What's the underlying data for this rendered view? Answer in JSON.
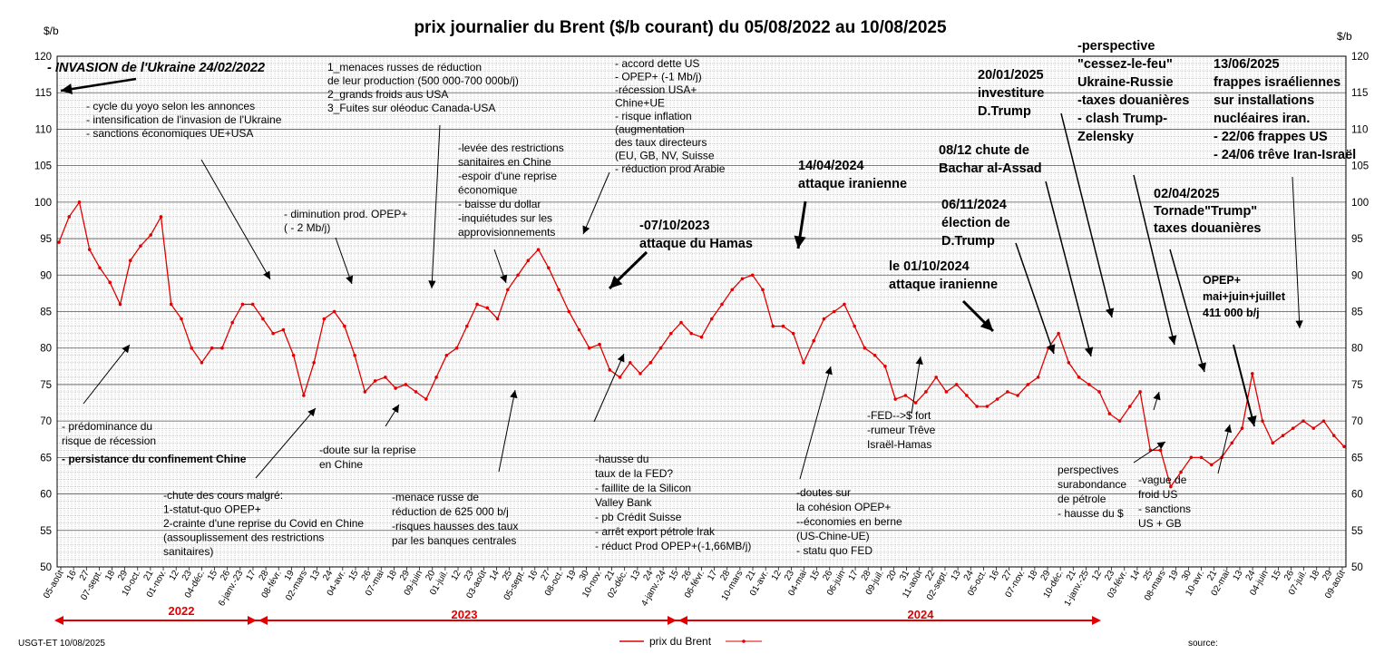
{
  "chart_data": {
    "type": "line",
    "title": "prix  journalier du  Brent ($/b courant) du 05/08/2022  au  10/08/2025",
    "ylabel_left": "$/b",
    "ylabel_right": "$/b",
    "ylim": [
      50,
      120
    ],
    "yticks": [
      50,
      55,
      60,
      65,
      70,
      75,
      80,
      85,
      90,
      95,
      100,
      105,
      110,
      115,
      120
    ],
    "grid": "on",
    "legend_position": "bottom-center",
    "color": "#e00000",
    "x_tick_labels": [
      "05-août",
      "16",
      "27",
      "07-sept.",
      "18",
      "29",
      "10-oct.",
      "21",
      "01-nov.",
      "12",
      "23",
      "04-déc.",
      "15",
      "26",
      "6-janv.-23",
      "17",
      "28",
      "08-févr.",
      "19",
      "02-mars",
      "13",
      "24",
      "04-avr.",
      "15",
      "26",
      "07-mai",
      "18",
      "29",
      "09-juin",
      "20",
      "01-juil.",
      "12",
      "23",
      "03-août",
      "14",
      "25",
      "05-sept.",
      "16",
      "27",
      "08-oct.",
      "19",
      "30",
      "10-nov.",
      "21",
      "02-déc.",
      "13",
      "24",
      "4-janv.-24",
      "15",
      "26",
      "06-févr.",
      "17",
      "28",
      "10-mars",
      "21",
      "01-avr.",
      "12",
      "23",
      "04-mai",
      "15",
      "26",
      "06-juin",
      "17",
      "28",
      "09-juil.",
      "20",
      "31",
      "11-août",
      "22",
      "02-sept.",
      "13",
      "24",
      "05-oct.",
      "16",
      "27",
      "07-nov.",
      "18",
      "29",
      "10-déc.",
      "21",
      "1-janv.-25",
      "12",
      "23",
      "03-févr.",
      "14",
      "25",
      "08-mars",
      "19",
      "30",
      "10-avr.",
      "21",
      "02-mai",
      "13",
      "24",
      "04-juin",
      "15",
      "26",
      "07-juil.",
      "18",
      "29",
      "09-août"
    ],
    "series": [
      {
        "name": "prix du Brent",
        "note": "Tous les points ne sont pas lisibles ; valeurs estimées à partir de la grille, un point environ tous les 11 jours",
        "values": [
          94.5,
          98.0,
          100.0,
          93.5,
          91.0,
          89.0,
          86.0,
          92.0,
          94.0,
          95.5,
          98.0,
          86.0,
          84.0,
          80.0,
          78.0,
          80.0,
          80.0,
          83.5,
          86.0,
          86.0,
          84.0,
          82.0,
          82.5,
          79.0,
          73.5,
          78.0,
          84.0,
          85.0,
          83.0,
          79.0,
          74.0,
          75.5,
          76.0,
          74.5,
          75.0,
          74.0,
          73.0,
          76.0,
          79.0,
          80.0,
          83.0,
          86.0,
          85.5,
          84.0,
          88.0,
          90.0,
          92.0,
          93.5,
          91.0,
          88.0,
          85.0,
          82.5,
          80.0,
          80.5,
          77.0,
          76.0,
          78.0,
          76.5,
          78.0,
          80.0,
          82.0,
          83.5,
          82.0,
          81.5,
          84.0,
          86.0,
          88.0,
          89.5,
          90.0,
          88.0,
          83.0,
          83.0,
          82.0,
          78.0,
          81.0,
          84.0,
          85.0,
          86.0,
          83.0,
          80.0,
          79.0,
          77.5,
          73.0,
          73.5,
          72.5,
          74.0,
          76.0,
          74.0,
          75.0,
          73.5,
          72.0,
          72.0,
          73.0,
          74.0,
          73.5,
          75.0,
          76.0,
          80.0,
          82.0,
          78.0,
          76.0,
          75.0,
          74.0,
          71.0,
          70.0,
          72.0,
          74.0,
          66.0,
          66.0,
          61.0,
          63.0,
          65.0,
          65.0,
          64.0,
          65.0,
          67.0,
          69.0,
          76.5,
          70.0,
          67.0,
          68.0,
          69.0,
          70.0,
          69.0,
          70.0,
          68.0,
          66.5
        ]
      }
    ],
    "annotations": {
      "invasion": "INVASION de l'Ukraine 24/02/2022",
      "yoyo": [
        "- cycle du yoyo selon les annonces",
        "- intensification de l'invasion de l'Ukraine",
        "- sanctions économiques UE+USA"
      ],
      "menaces": [
        "1_menaces russes de réduction",
        "de leur production (500 000-700  000b/j)",
        "2_grands froids aus USA",
        "3_Fuites sur oléoduc Canada-USA"
      ],
      "accord": [
        "- accord dette US",
        "- OPEP+ (-1 Mb/j)",
        "-récession  USA+",
        "Chine+UE",
        "- risque inflation",
        "(augmentation",
        "des taux directeurs",
        "(EU, GB, NV, Suisse",
        "- réduction prod Arabie"
      ],
      "levee": [
        "-levée des restrictions",
        "sanitaires en Chine",
        "-espoir d'une reprise",
        "économique",
        "- baisse du dollar",
        "-inquiétudes sur   les",
        "approvisionnements"
      ],
      "diminution": [
        "-  diminution prod. OPEP+",
        "( - 2 Mb/j)"
      ],
      "hamas": [
        "-07/10/2023",
        "attaque  du Hamas"
      ],
      "iran_avril": [
        "14/04/2024",
        "attaque iranienne"
      ],
      "iran_oct": [
        "le 01/10/2024",
        "attaque iranienne"
      ],
      "election": [
        "06/11/2024",
        "élection de",
        "D.Trump"
      ],
      "assad": [
        "08/12 chute de",
        "Bachar al-Assad"
      ],
      "investiture": [
        "20/01/2025",
        "investiture",
        "D.Trump"
      ],
      "perspective": [
        "-perspective",
        "\"cessez-le-feu\"",
        "Ukraine-Russie",
        "-taxes douanières",
        "- clash Trump-",
        "Zelensky"
      ],
      "frappes": [
        "13/06/2025",
        "frappes  israéliennes",
        "sur installations",
        "nucléaires iran.",
        "- 22/06 frappes US",
        "- 24/06 trêve Iran-Israël"
      ],
      "tornade": [
        "02/04/2025",
        "Tornade\"Trump\"",
        "taxes douanières"
      ],
      "opep_mai": [
        "OPEP+",
        "mai+juin+juillet",
        "411 000 b/j"
      ],
      "recession": [
        "- prédominance du",
        "risque de récession"
      ],
      "confinement": "- persistance du confinement Chine",
      "chute": [
        "-chute des cours malgré:",
        "1-statut-quo OPEP+",
        "2-crainte d'une reprise du Covid en Chine",
        "(assouplissement des restrictions",
        "sanitaires)"
      ],
      "doute": [
        "-doute sur la reprise",
        "en Chine"
      ],
      "menace_russe": [
        "-menace russe de",
        "réduction de 625 000  b/j",
        "-risques hausses des taux",
        "par les banques centrales"
      ],
      "hausse_fed": [
        "-hausse du",
        "taux de la FED?",
        "- faillite de la Silicon",
        "Valley Bank",
        "- pb Crédit Suisse",
        "- arrêt export pétrole Irak",
        "- réduct Prod OPEP+(-1,66MB/j)"
      ],
      "doutes": [
        "-doutes sur",
        "la cohésion  OPEP+",
        "--économies en berne",
        "(US-Chine-UE)",
        "- statu quo FED"
      ],
      "fed_dollar": [
        "-FED-->$ fort",
        "-rumeur Trêve",
        "Israël-Hamas"
      ],
      "surabondance": [
        "perspectives",
        "surabondance",
        "de pétrole",
        "- hausse du $"
      ],
      "vague": [
        "-vague de",
        "froid US",
        "- sanctions",
        "US + GB"
      ]
    },
    "years": [
      "2022",
      "2023",
      "2024"
    ],
    "footer_left": "USGT-ET  10/08/2025",
    "footer_right": "source:"
  }
}
